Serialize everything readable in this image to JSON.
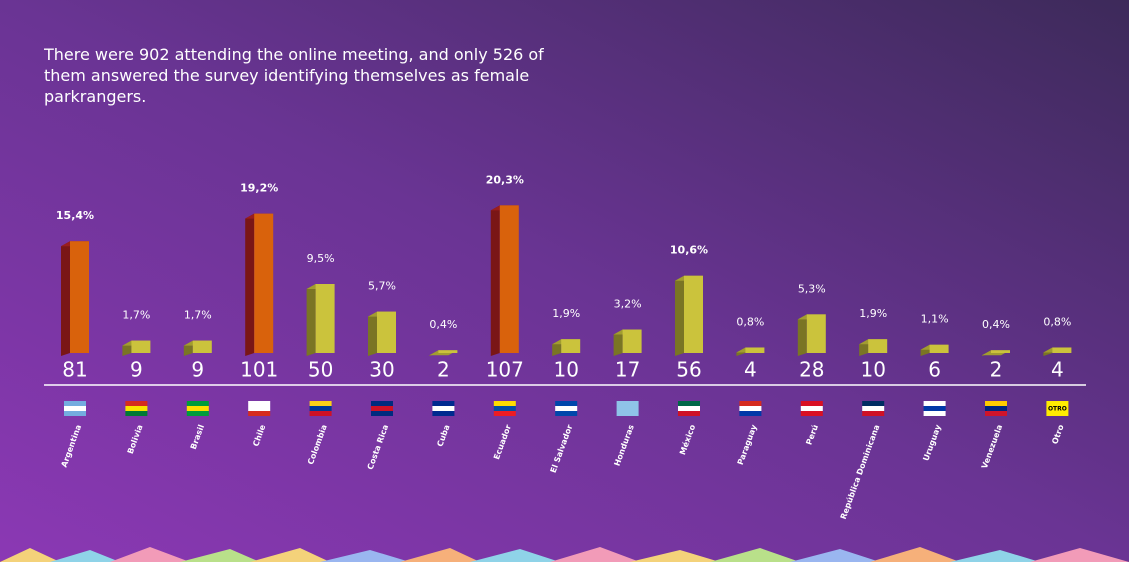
{
  "chart_data": {
    "type": "bar3d",
    "title": "There were 902 attending the online meeting, and only 526 of them answered the survey identifying themselves as female parkrangers.",
    "categories": [
      "Argentina",
      "Bolivia",
      "Brasil",
      "Chile",
      "Colombia",
      "Costa Rica",
      "Cuba",
      "Ecuador",
      "El Salvador",
      "Honduras",
      "México",
      "Paraguay",
      "Perú",
      "República Dominicana",
      "Uruguay",
      "Venezuela",
      "Otro"
    ],
    "values": [
      81,
      9,
      9,
      101,
      50,
      30,
      2,
      107,
      10,
      17,
      56,
      4,
      28,
      10,
      6,
      2,
      4
    ],
    "percentages": [
      {
        "value": 15.4,
        "label": "15,4%"
      },
      {
        "value": 1.7,
        "label": "1,7%"
      },
      {
        "value": 1.7,
        "label": "1,7%"
      },
      {
        "value": 19.2,
        "label": "19,2%"
      },
      {
        "value": 9.5,
        "label": "9,5%"
      },
      {
        "value": 5.7,
        "label": "5,7%"
      },
      {
        "value": 0.4,
        "label": "0,4%"
      },
      {
        "value": 20.3,
        "label": "20,3%"
      },
      {
        "value": 1.9,
        "label": "1,9%"
      },
      {
        "value": 3.2,
        "label": "3,2%"
      },
      {
        "value": 10.6,
        "label": "10,6%"
      },
      {
        "value": 0.8,
        "label": "0,8%"
      },
      {
        "value": 5.3,
        "label": "5,3%"
      },
      {
        "value": 1.9,
        "label": "1,9%"
      },
      {
        "value": 1.1,
        "label": "1,1%"
      },
      {
        "value": 0.4,
        "label": "0,4%"
      },
      {
        "value": 0.8,
        "label": "0,8%"
      }
    ],
    "color": "#cbc33c",
    "highlight_color": "#d9620c",
    "highlighted": [
      "Argentina",
      "Chile",
      "Ecuador"
    ],
    "other_flag_label": "OTRO"
  }
}
